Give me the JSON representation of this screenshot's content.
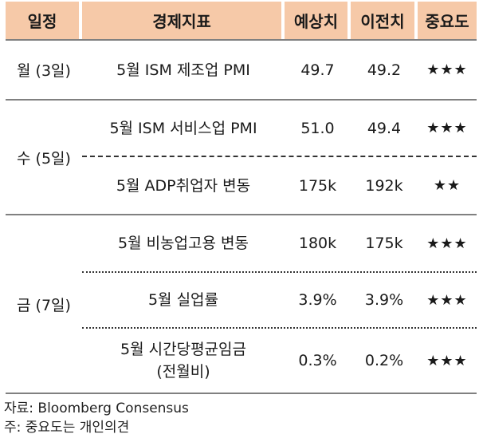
{
  "headers": {
    "date": "일정",
    "indicator": "경제지표",
    "expected": "예상치",
    "previous": "이전치",
    "importance": "중요도"
  },
  "groups": [
    {
      "date": "월 (3일)",
      "rows": [
        {
          "indicator": "5월 ISM 제조업 PMI",
          "expected": "49.7",
          "previous": "49.2",
          "importance": "★★★"
        }
      ]
    },
    {
      "date": "수 (5일)",
      "rows": [
        {
          "indicator": "5월 ISM 서비스업 PMI",
          "expected": "51.0",
          "previous": "49.4",
          "importance": "★★★"
        },
        {
          "indicator": "5월 ADP취업자 변동",
          "expected": "175k",
          "previous": "192k",
          "importance": "★★"
        }
      ]
    },
    {
      "date": "금 (7일)",
      "rows": [
        {
          "indicator": "5월 비농업고용 변동",
          "expected": "180k",
          "previous": "175k",
          "importance": "★★★"
        },
        {
          "indicator": "5월 실업률",
          "expected": "3.9%",
          "previous": "3.9%",
          "importance": "★★★"
        },
        {
          "indicator_line1": "5월 시간당평균임금",
          "indicator_line2": "(전월비)",
          "expected": "0.3%",
          "previous": "0.2%",
          "importance": "★★★"
        }
      ]
    }
  ],
  "notes": {
    "source": "자료: Bloomberg Consensus",
    "note": "주: 중요도는 개인의견"
  }
}
